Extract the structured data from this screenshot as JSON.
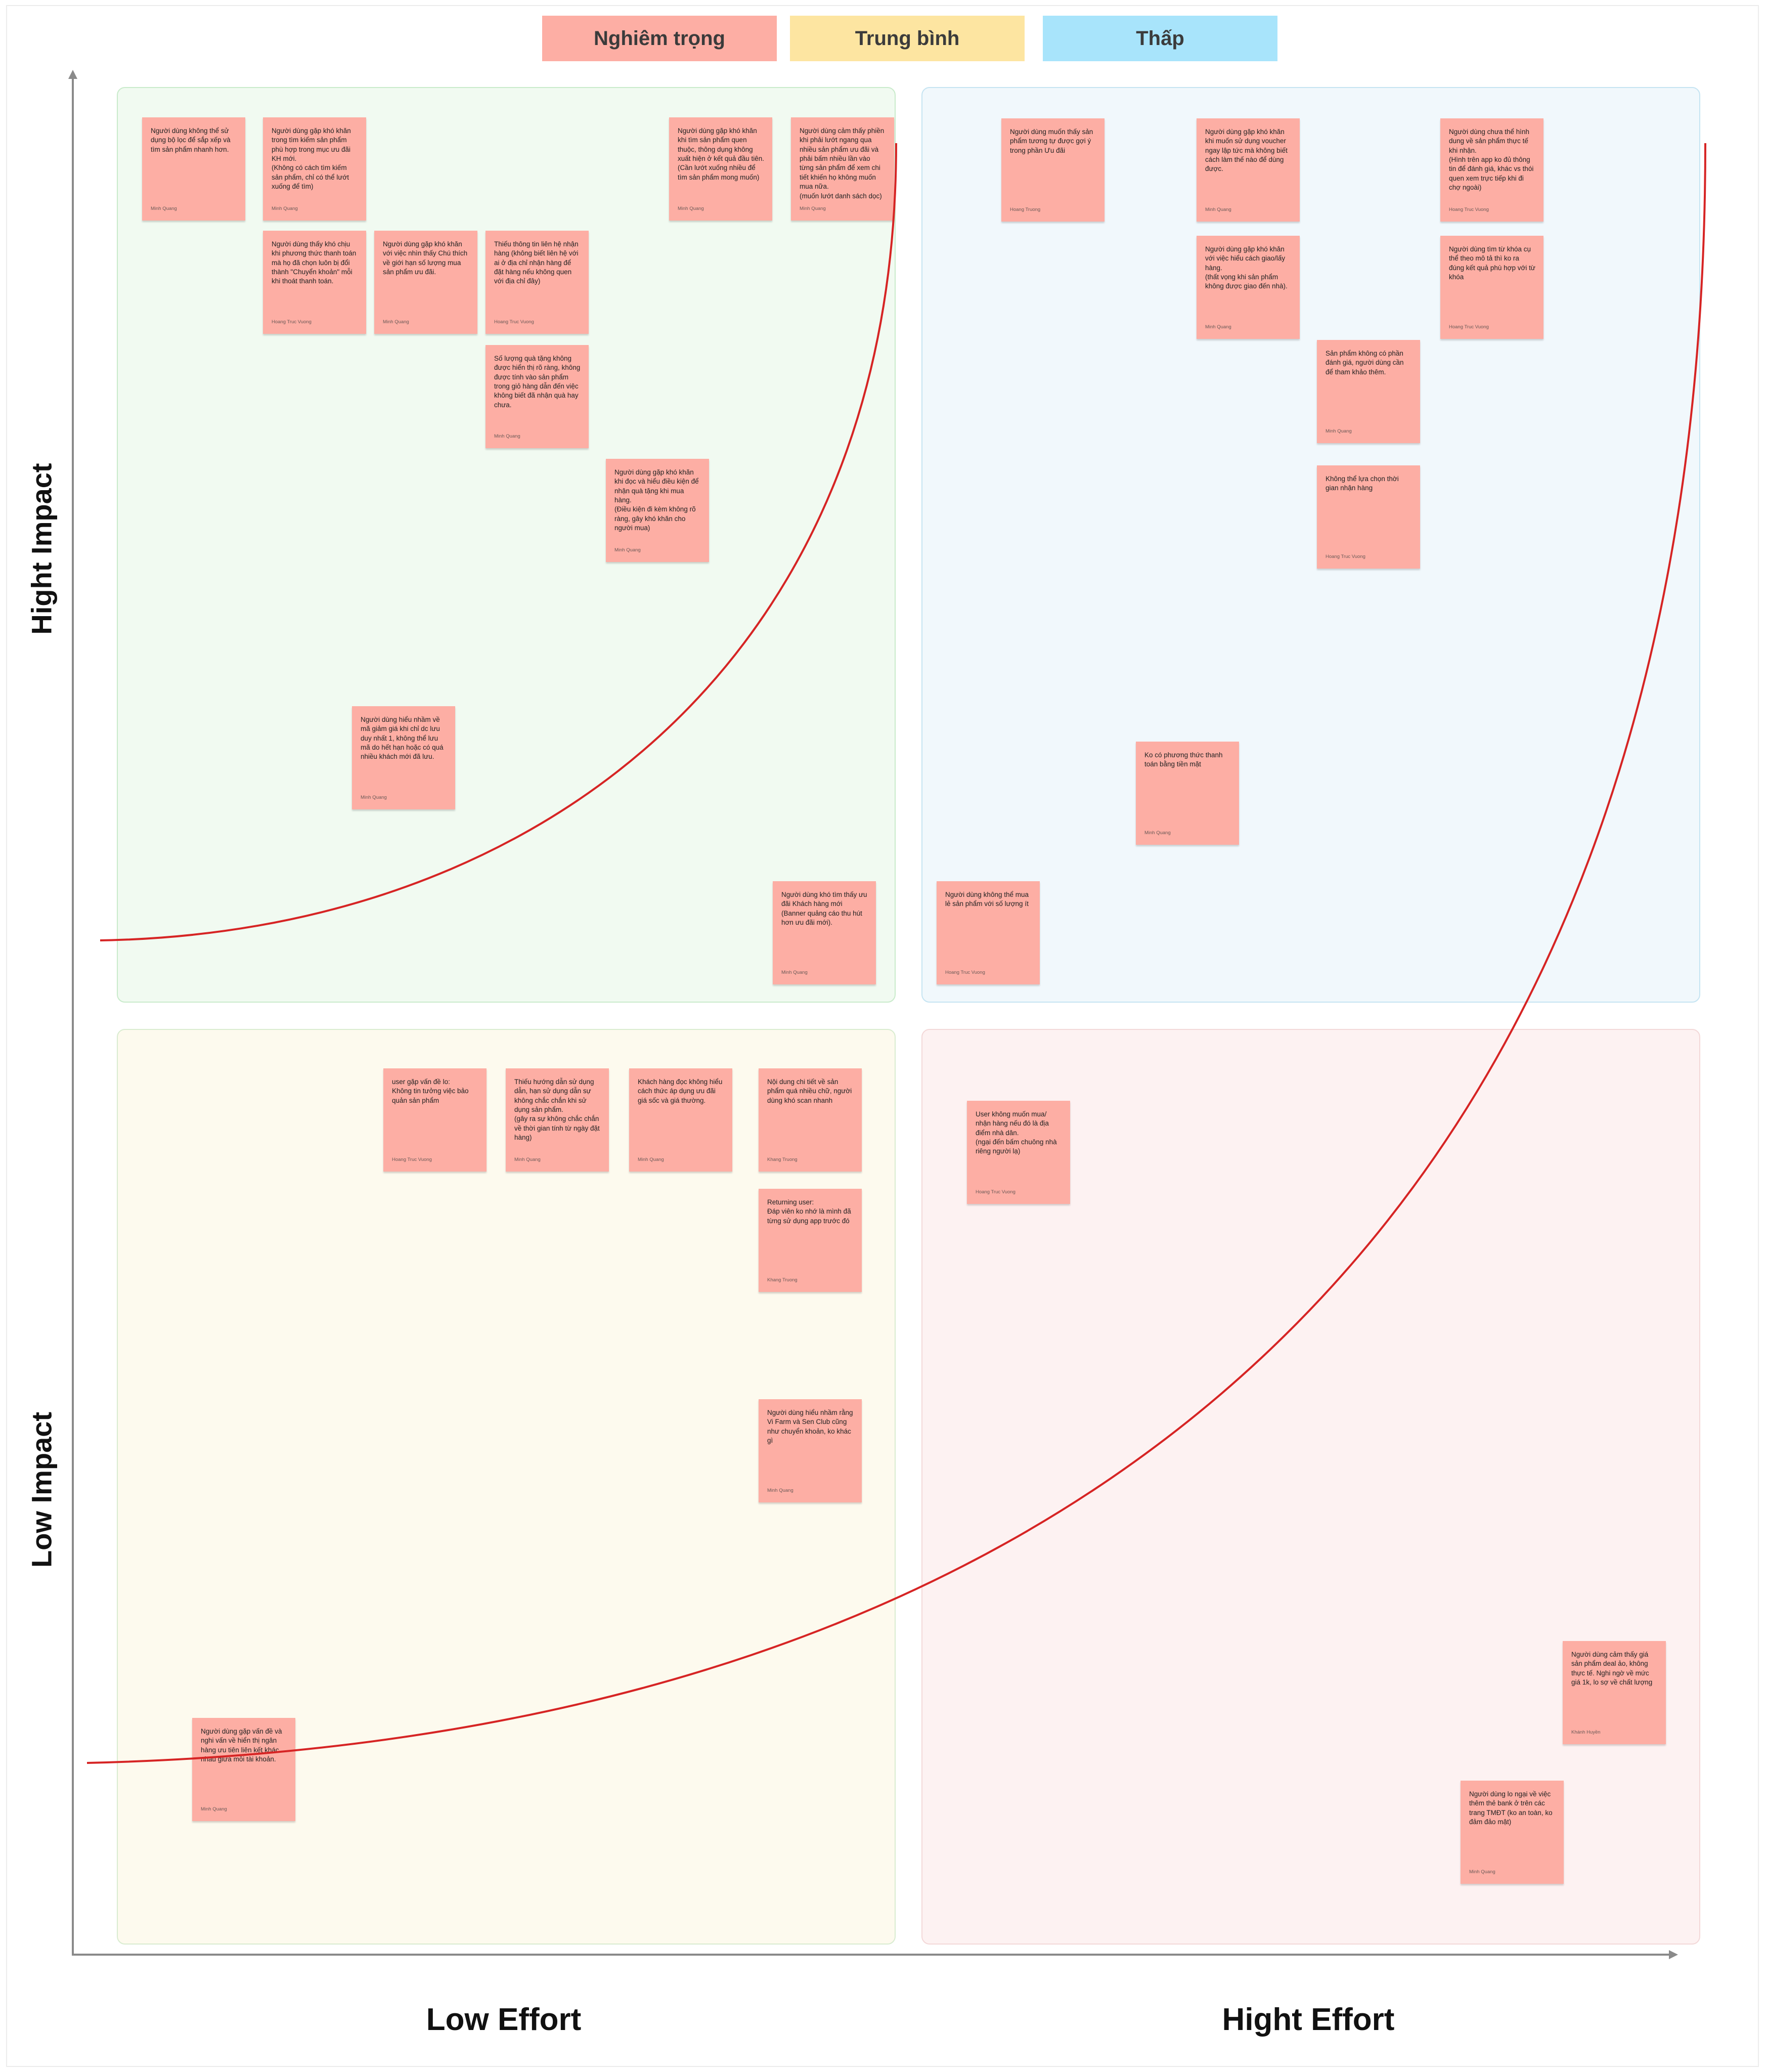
{
  "legend": [
    {
      "label": "Nghiêm trọng",
      "color": "#fdaea4"
    },
    {
      "label": "Trung bình",
      "color": "#fde5a1"
    },
    {
      "label": "Thấp",
      "color": "#a8e4fb"
    }
  ],
  "axes": {
    "y_top": "Hight Impact",
    "y_bottom": "Low Impact",
    "x_left": "Low Effort",
    "x_right": "Hight Effort"
  },
  "quadrant_colors": {
    "top_left": "#f1faf1",
    "top_right": "#f1f8fc",
    "bottom_left": "#fdfaee",
    "bottom_right": "#fdf2f2"
  },
  "curve_color": "#d62424",
  "stickies": {
    "tl1": {
      "text": "Người dùng không thể sử dụng bộ lọc để sắp xếp và tìm sản phẩm nhanh hơn.",
      "author": "Minh Quang"
    },
    "tl2": {
      "text": "Người dùng gặp khó khăn trong tìm kiếm sản phẩm phù hợp trong mục ưu đãi KH mới.\n(Không có cách tìm kiếm sản phẩm, chỉ có thể lướt xuống để tìm)",
      "author": "Minh Quang"
    },
    "tl3": {
      "text": "Người dùng gặp khó khăn khi tìm sản phẩm quen thuộc, thông dụng không xuất hiện ở kết quả đầu tiên.\n(Cần lướt xuống nhiều để tìm sản phẩm mong muốn)",
      "author": "Minh Quang"
    },
    "tl4": {
      "text": "Người dùng cảm thấy phiền khi phải lướt ngang qua nhiều sản phẩm ưu đãi và phải bấm nhiều lần vào từng sản phẩm để xem chi tiết khiến họ không muốn mua nữa.\n(muốn lướt danh sách dọc)",
      "author": "Minh Quang"
    },
    "tl5": {
      "text": "Người dùng thấy khó chịu khi phương thức thanh toán mà họ đã chọn luôn bị đổi thành \"Chuyển khoản\" mỗi khi thoát thanh toán.",
      "author": "Hoang Truc Vuong"
    },
    "tl6": {
      "text": "Người dùng gặp khó khăn với việc nhìn thấy Chú thích về giới hạn số lượng mua sản phẩm ưu đãi.",
      "author": "Minh Quang"
    },
    "tl7": {
      "text": "Thiếu thông tin liên hệ nhận hàng (không biết liên hệ với ai ở địa chỉ nhận hàng để đặt hàng nếu không quen với địa chỉ đây)",
      "author": "Hoang Truc Vuong"
    },
    "tl8": {
      "text": "Số lượng quà tặng không được hiển thị rõ ràng, không được tính vào sản phẩm trong giỏ hàng dẫn đến việc không biết đã nhận quà hay chưa.",
      "author": "Minh Quang"
    },
    "tl9": {
      "text": "Người dùng gặp khó khăn khi đọc và hiểu điều kiện để nhận quà tặng khi mua hàng.\n(Điều kiện đi kèm không rõ ràng, gây khó khăn cho người mua)",
      "author": "Minh Quang"
    },
    "tl10": {
      "text": "Người dùng hiểu nhầm về mã giảm giá khi chỉ dc lưu duy nhất 1, không thể lưu mã do hết hạn hoặc có quá nhiều khách mới đã lưu.",
      "author": "Minh Quang"
    },
    "tl11": {
      "text": "Người dùng khó tìm thấy ưu đãi Khách hàng mới (Banner quảng cáo thu hút hơn ưu đãi mới).",
      "author": "Minh Quang"
    },
    "tr1": {
      "text": "Người dùng muốn thấy sản phẩm tương tự được gợi ý trong phần Ưu đãi",
      "author": "Hoang Truong"
    },
    "tr2": {
      "text": "Người dùng gặp khó khăn khi muốn sử dụng voucher ngay lập tức mà không biết cách làm thế nào để dùng được.",
      "author": "Minh Quang"
    },
    "tr3": {
      "text": "Người dùng chưa thể hình dung về sản phẩm thực tế khi nhận.\n(Hình trên app ko đủ thông tin để đánh giá, khác vs thói quen xem trực tiếp khi đi chợ ngoài)",
      "author": "Hoang Truc Vuong"
    },
    "tr4": {
      "text": "Người dùng gặp khó khăn với việc hiểu cách giao/lấy hàng.\n(thất vọng khi sản phẩm không được giao đến nhà).",
      "author": "Minh Quang"
    },
    "tr5": {
      "text": "Người dùng tìm từ khóa cụ thể theo mô tả thì ko ra đúng kết quả phù hợp với từ khóa",
      "author": "Hoang Truc Vuong"
    },
    "tr6": {
      "text": "Sản phẩm không có phần đánh giá, người dùng cần để tham khảo thêm.",
      "author": "Minh Quang"
    },
    "tr7": {
      "text": "Không thể lựa chọn thời gian nhận hàng",
      "author": "Hoang Truc Vuong"
    },
    "tr8": {
      "text": "Ko có phương thức thanh toán bằng tiền mặt",
      "author": "Minh Quang"
    },
    "tr9": {
      "text": "Người dùng không thể mua lẻ sản phẩm với số lượng ít",
      "author": "Hoang Truc Vuong"
    },
    "bl1": {
      "text": "user gặp vấn đề lo:\nKhông tin tưởng việc bảo quản sản phẩm",
      "author": "Hoang Truc Vuong"
    },
    "bl2": {
      "text": "Thiếu hướng dẫn sử dụng dẫn, hạn sử dụng dẫn sự không chắc chắn khi sử dụng sản phẩm.\n(gây ra sự không chắc chắn về thời gian tính từ ngày đặt hàng)",
      "author": "Minh Quang"
    },
    "bl3": {
      "text": "Khách hàng đọc không hiểu cách thức áp dụng ưu đãi giá sốc và giá thường.",
      "author": "Minh Quang"
    },
    "bl4": {
      "text": "Nội dung chi tiết về sản phẩm quá nhiều chữ, người dùng khó scan nhanh",
      "author": "Khang Truong"
    },
    "bl5": {
      "text": "Returning user:\nĐáp viên ko nhớ là mình đã từng sử dụng app trước đó",
      "author": "Khang Truong"
    },
    "bl6": {
      "text": "Người dùng hiểu nhầm rằng Vi Farm và Sen Club cũng như chuyển khoản, ko khác gì",
      "author": "Minh Quang"
    },
    "bl7": {
      "text": "Người dùng gặp vấn đề và nghi vấn về hiển thị ngân hàng ưu tiên liên kết khác nhau giữa mỗi tài khoản.",
      "author": "Minh Quang"
    },
    "br1": {
      "text": "User không muốn mua/ nhận hàng nếu đó là địa điểm nhà dân.\n(ngại đến bấm chuông nhà riêng người lạ)",
      "author": "Hoang Truc Vuong"
    },
    "br2": {
      "text": "Người dùng cảm thấy giá sản phẩm deal ảo, không thực tế. Nghi ngờ về mức giá 1k, lo sợ về chất lượng",
      "author": "Khánh Huyền"
    },
    "br3": {
      "text": "Người dùng lo ngại về việc thêm thẻ bank ở trên các trang TMĐT (ko an toàn, ko đảm đảo mật)",
      "author": "Minh Quang"
    }
  }
}
